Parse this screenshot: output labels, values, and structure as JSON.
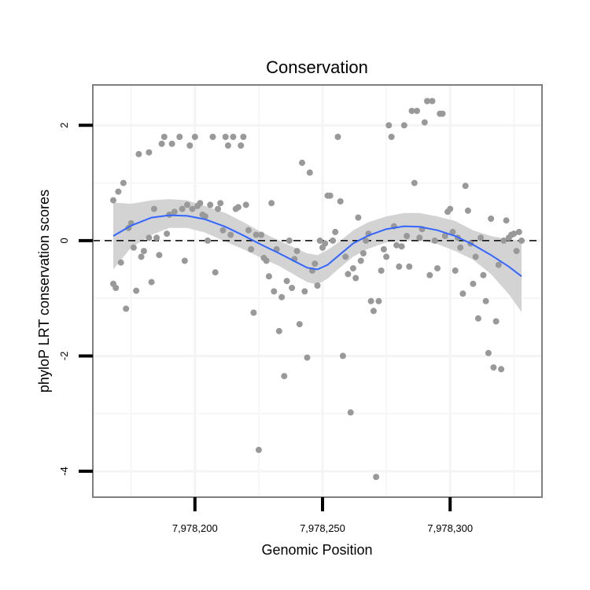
{
  "chart_data": {
    "type": "scatter",
    "title": "Conservation",
    "xlabel": "Genomic Position",
    "ylabel": "phyloP LRT conservation scores",
    "xlim": [
      7978160,
      7978336
    ],
    "ylim": [
      -4.45,
      2.7
    ],
    "x_ticks": [
      7978200,
      7978250,
      7978300
    ],
    "x_tick_labels": [
      "7,978,200",
      "7,978,250",
      "7,978,300"
    ],
    "y_ticks": [
      2,
      0,
      -2,
      -4
    ],
    "y_tick_labels": [
      "2",
      "0",
      "-2",
      "-4"
    ],
    "grid": true,
    "reference_line": {
      "y": 0,
      "style": "dashed"
    },
    "colors": {
      "points": "#999999",
      "smooth_line": "#3366FF",
      "confidence_band": "#d3d3d3",
      "grid": "#f4f4f4",
      "panel_border": "#7f7f7f"
    },
    "points": [
      {
        "x": 7978168,
        "y": 0.7
      },
      {
        "x": 7978168,
        "y": -0.75
      },
      {
        "x": 7978169,
        "y": -0.82
      },
      {
        "x": 7978170,
        "y": 0.85
      },
      {
        "x": 7978171,
        "y": -0.38
      },
      {
        "x": 7978172,
        "y": 1.0
      },
      {
        "x": 7978173,
        "y": -1.18
      },
      {
        "x": 7978174,
        "y": 0.22
      },
      {
        "x": 7978175,
        "y": 0.3
      },
      {
        "x": 7978176,
        "y": -0.12
      },
      {
        "x": 7978177,
        "y": -0.87
      },
      {
        "x": 7978178,
        "y": 1.5
      },
      {
        "x": 7978179,
        "y": -0.28
      },
      {
        "x": 7978180,
        "y": -0.18
      },
      {
        "x": 7978182,
        "y": 1.53
      },
      {
        "x": 7978182,
        "y": 0.05
      },
      {
        "x": 7978183,
        "y": -0.72
      },
      {
        "x": 7978184,
        "y": 0.55
      },
      {
        "x": 7978185,
        "y": 0.05
      },
      {
        "x": 7978186,
        "y": -0.25
      },
      {
        "x": 7978187,
        "y": 1.68
      },
      {
        "x": 7978188,
        "y": 1.8
      },
      {
        "x": 7978189,
        "y": 0.12
      },
      {
        "x": 7978190,
        "y": 0.45
      },
      {
        "x": 7978191,
        "y": 1.68
      },
      {
        "x": 7978192,
        "y": 0.5
      },
      {
        "x": 7978194,
        "y": 1.8
      },
      {
        "x": 7978195,
        "y": 0.55
      },
      {
        "x": 7978196,
        "y": -0.35
      },
      {
        "x": 7978197,
        "y": 0.62
      },
      {
        "x": 7978198,
        "y": 1.65
      },
      {
        "x": 7978199,
        "y": 0.55
      },
      {
        "x": 7978200,
        "y": 1.8
      },
      {
        "x": 7978201,
        "y": 0.6
      },
      {
        "x": 7978202,
        "y": 0.65
      },
      {
        "x": 7978203,
        "y": 0.45
      },
      {
        "x": 7978204,
        "y": 0.42
      },
      {
        "x": 7978205,
        "y": 0.0
      },
      {
        "x": 7978206,
        "y": 0.62
      },
      {
        "x": 7978207,
        "y": 1.8
      },
      {
        "x": 7978208,
        "y": -0.55
      },
      {
        "x": 7978209,
        "y": 0.55
      },
      {
        "x": 7978210,
        "y": 0.65
      },
      {
        "x": 7978211,
        "y": 0.18
      },
      {
        "x": 7978212,
        "y": 1.8
      },
      {
        "x": 7978213,
        "y": 1.65
      },
      {
        "x": 7978214,
        "y": 0.1
      },
      {
        "x": 7978215,
        "y": 1.8
      },
      {
        "x": 7978216,
        "y": 0.55
      },
      {
        "x": 7978217,
        "y": 0.58
      },
      {
        "x": 7978218,
        "y": 1.65
      },
      {
        "x": 7978219,
        "y": 1.8
      },
      {
        "x": 7978220,
        "y": 0.62
      },
      {
        "x": 7978221,
        "y": 0.18
      },
      {
        "x": 7978222,
        "y": -0.15
      },
      {
        "x": 7978223,
        "y": -1.25
      },
      {
        "x": 7978224,
        "y": 0.1
      },
      {
        "x": 7978225,
        "y": -3.63
      },
      {
        "x": 7978226,
        "y": 0.1
      },
      {
        "x": 7978227,
        "y": -0.3
      },
      {
        "x": 7978228,
        "y": -0.35
      },
      {
        "x": 7978229,
        "y": -0.62
      },
      {
        "x": 7978230,
        "y": 0.65
      },
      {
        "x": 7978231,
        "y": -0.88
      },
      {
        "x": 7978232,
        "y": -0.15
      },
      {
        "x": 7978233,
        "y": -1.57
      },
      {
        "x": 7978234,
        "y": -0.98
      },
      {
        "x": 7978235,
        "y": -2.35
      },
      {
        "x": 7978236,
        "y": -0.7
      },
      {
        "x": 7978237,
        "y": 0.0
      },
      {
        "x": 7978238,
        "y": -0.82
      },
      {
        "x": 7978239,
        "y": -0.32
      },
      {
        "x": 7978240,
        "y": -0.18
      },
      {
        "x": 7978241,
        "y": -1.45
      },
      {
        "x": 7978242,
        "y": 1.35
      },
      {
        "x": 7978243,
        "y": -0.88
      },
      {
        "x": 7978244,
        "y": -2.03
      },
      {
        "x": 7978245,
        "y": 1.18
      },
      {
        "x": 7978246,
        "y": -0.52
      },
      {
        "x": 7978247,
        "y": -0.4
      },
      {
        "x": 7978248,
        "y": -0.78
      },
      {
        "x": 7978249,
        "y": 0.0
      },
      {
        "x": 7978250,
        "y": -0.12
      },
      {
        "x": 7978251,
        "y": -0.05
      },
      {
        "x": 7978252,
        "y": 0.78
      },
      {
        "x": 7978253,
        "y": 0.78
      },
      {
        "x": 7978254,
        "y": 0.0
      },
      {
        "x": 7978255,
        "y": 0.15
      },
      {
        "x": 7978256,
        "y": 1.8
      },
      {
        "x": 7978257,
        "y": 0.68
      },
      {
        "x": 7978258,
        "y": -2.0
      },
      {
        "x": 7978259,
        "y": -0.28
      },
      {
        "x": 7978260,
        "y": -0.58
      },
      {
        "x": 7978261,
        "y": -2.98
      },
      {
        "x": 7978262,
        "y": -0.48
      },
      {
        "x": 7978263,
        "y": -0.65
      },
      {
        "x": 7978264,
        "y": 0.4
      },
      {
        "x": 7978265,
        "y": -0.35
      },
      {
        "x": 7978266,
        "y": -0.22
      },
      {
        "x": 7978267,
        "y": 0.0
      },
      {
        "x": 7978268,
        "y": 0.12
      },
      {
        "x": 7978269,
        "y": -1.05
      },
      {
        "x": 7978270,
        "y": -1.22
      },
      {
        "x": 7978271,
        "y": -4.1
      },
      {
        "x": 7978272,
        "y": -1.05
      },
      {
        "x": 7978273,
        "y": -0.52
      },
      {
        "x": 7978274,
        "y": -0.15
      },
      {
        "x": 7978275,
        "y": -0.28
      },
      {
        "x": 7978276,
        "y": 2.0
      },
      {
        "x": 7978277,
        "y": 1.8
      },
      {
        "x": 7978278,
        "y": 0.25
      },
      {
        "x": 7978279,
        "y": -0.08
      },
      {
        "x": 7978280,
        "y": -0.45
      },
      {
        "x": 7978281,
        "y": -0.1
      },
      {
        "x": 7978282,
        "y": 2.0
      },
      {
        "x": 7978283,
        "y": 0.08
      },
      {
        "x": 7978284,
        "y": -0.45
      },
      {
        "x": 7978285,
        "y": 2.25
      },
      {
        "x": 7978286,
        "y": 1.0
      },
      {
        "x": 7978287,
        "y": 2.25
      },
      {
        "x": 7978288,
        "y": 0.05
      },
      {
        "x": 7978289,
        "y": 0.2
      },
      {
        "x": 7978290,
        "y": 2.05
      },
      {
        "x": 7978291,
        "y": 2.42
      },
      {
        "x": 7978292,
        "y": -0.6
      },
      {
        "x": 7978293,
        "y": 2.42
      },
      {
        "x": 7978294,
        "y": 0.0
      },
      {
        "x": 7978295,
        "y": -0.48
      },
      {
        "x": 7978296,
        "y": 2.2
      },
      {
        "x": 7978297,
        "y": 2.2
      },
      {
        "x": 7978298,
        "y": 0.08
      },
      {
        "x": 7978299,
        "y": 0.5
      },
      {
        "x": 7978300,
        "y": 0.55
      },
      {
        "x": 7978301,
        "y": 0.15
      },
      {
        "x": 7978302,
        "y": -0.52
      },
      {
        "x": 7978303,
        "y": 0.05
      },
      {
        "x": 7978304,
        "y": -0.12
      },
      {
        "x": 7978305,
        "y": -0.92
      },
      {
        "x": 7978306,
        "y": 0.95
      },
      {
        "x": 7978307,
        "y": 0.52
      },
      {
        "x": 7978308,
        "y": -0.05
      },
      {
        "x": 7978309,
        "y": -0.75
      },
      {
        "x": 7978310,
        "y": -0.28
      },
      {
        "x": 7978311,
        "y": -1.35
      },
      {
        "x": 7978312,
        "y": 0.05
      },
      {
        "x": 7978313,
        "y": -0.6
      },
      {
        "x": 7978314,
        "y": -1.05
      },
      {
        "x": 7978315,
        "y": -1.95
      },
      {
        "x": 7978316,
        "y": 0.38
      },
      {
        "x": 7978317,
        "y": -2.2
      },
      {
        "x": 7978318,
        "y": -1.4
      },
      {
        "x": 7978319,
        "y": -0.42
      },
      {
        "x": 7978320,
        "y": -2.23
      },
      {
        "x": 7978321,
        "y": 0.0
      },
      {
        "x": 7978322,
        "y": 0.35
      },
      {
        "x": 7978323,
        "y": 0.05
      },
      {
        "x": 7978324,
        "y": 0.1
      },
      {
        "x": 7978325,
        "y": 0.12
      },
      {
        "x": 7978326,
        "y": -0.18
      },
      {
        "x": 7978327,
        "y": 0.15
      },
      {
        "x": 7978328,
        "y": 0.0
      }
    ],
    "smooth": [
      {
        "x": 7978168,
        "y": 0.08,
        "lo": -0.5,
        "hi": 0.66
      },
      {
        "x": 7978175,
        "y": 0.26,
        "lo": -0.12,
        "hi": 0.64
      },
      {
        "x": 7978183,
        "y": 0.4,
        "lo": 0.1,
        "hi": 0.7
      },
      {
        "x": 7978190,
        "y": 0.44,
        "lo": 0.22,
        "hi": 0.72
      },
      {
        "x": 7978197,
        "y": 0.43,
        "lo": 0.22,
        "hi": 0.7
      },
      {
        "x": 7978204,
        "y": 0.37,
        "lo": 0.14,
        "hi": 0.6
      },
      {
        "x": 7978212,
        "y": 0.24,
        "lo": -0.02,
        "hi": 0.48
      },
      {
        "x": 7978219,
        "y": 0.09,
        "lo": -0.15,
        "hi": 0.32
      },
      {
        "x": 7978226,
        "y": -0.07,
        "lo": -0.3,
        "hi": 0.15
      },
      {
        "x": 7978233,
        "y": -0.22,
        "lo": -0.44,
        "hi": 0.0
      },
      {
        "x": 7978240,
        "y": -0.38,
        "lo": -0.62,
        "hi": -0.14
      },
      {
        "x": 7978244,
        "y": -0.47,
        "lo": -0.72,
        "hi": -0.22
      },
      {
        "x": 7978248,
        "y": -0.5,
        "lo": -0.76,
        "hi": -0.25
      },
      {
        "x": 7978252,
        "y": -0.42,
        "lo": -0.66,
        "hi": -0.16
      },
      {
        "x": 7978256,
        "y": -0.27,
        "lo": -0.5,
        "hi": -0.04
      },
      {
        "x": 7978262,
        "y": -0.05,
        "lo": -0.28,
        "hi": 0.18
      },
      {
        "x": 7978268,
        "y": 0.09,
        "lo": -0.14,
        "hi": 0.32
      },
      {
        "x": 7978275,
        "y": 0.2,
        "lo": -0.03,
        "hi": 0.42
      },
      {
        "x": 7978282,
        "y": 0.25,
        "lo": 0.0,
        "hi": 0.48
      },
      {
        "x": 7978288,
        "y": 0.24,
        "lo": 0.0,
        "hi": 0.48
      },
      {
        "x": 7978295,
        "y": 0.18,
        "lo": -0.06,
        "hi": 0.42
      },
      {
        "x": 7978302,
        "y": 0.08,
        "lo": -0.18,
        "hi": 0.34
      },
      {
        "x": 7978309,
        "y": -0.07,
        "lo": -0.33,
        "hi": 0.18
      },
      {
        "x": 7978316,
        "y": -0.25,
        "lo": -0.58,
        "hi": 0.08
      },
      {
        "x": 7978323,
        "y": -0.45,
        "lo": -0.93,
        "hi": 0.02
      },
      {
        "x": 7978328,
        "y": -0.62,
        "lo": -1.24,
        "hi": 0.0
      }
    ]
  }
}
